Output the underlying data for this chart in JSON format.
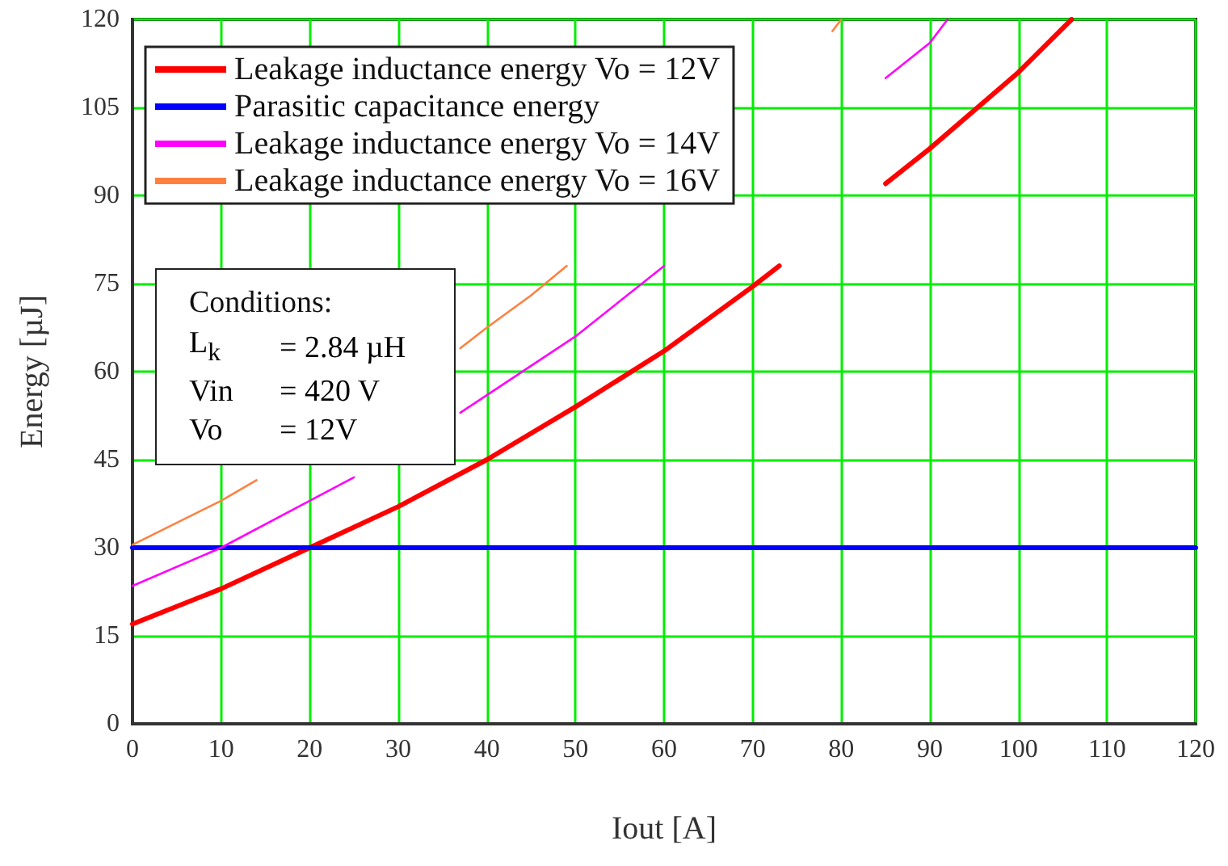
{
  "chart_data": {
    "type": "line",
    "xlabel": "Iout [A]",
    "ylabel": "Energy [µJ]",
    "xlim": [
      0,
      120
    ],
    "xticks": [
      0,
      10,
      20,
      30,
      40,
      50,
      60,
      70,
      80,
      90,
      100,
      110,
      120
    ],
    "ylim": [
      0,
      120
    ],
    "yticks": [
      0,
      15,
      30,
      45,
      60,
      75,
      90,
      105,
      120
    ],
    "grid": true,
    "legend": "top left",
    "marker": "none",
    "line_style": "solid",
    "annotations": [
      "Conditions:\nL$_{k}$\t= 2.84 µH\nVin\t= 420 V\nVo\t= 12V"
    ],
    "series": [
      {
        "name": "Leakage inductance energy Vo = 12V",
        "color": "#ff0000",
        "x": [
          0,
          10,
          20,
          30,
          40,
          50,
          60,
          70,
          73,
          80,
          85,
          90,
          100,
          106
        ],
        "values": [
          17,
          23,
          30,
          37,
          45,
          54,
          63.5,
          74.5,
          78,
          null,
          92,
          98,
          111,
          120
        ]
      },
      {
        "name": "Parasitic capacitance energy",
        "color": "#0000ff",
        "x": [
          0,
          120
        ],
        "values": [
          30,
          30
        ]
      },
      {
        "name": "Leakage inductance energy Vo = 14V",
        "color": "#ff00ff",
        "x": [
          0,
          10,
          20,
          25,
          30,
          37,
          40,
          50,
          60,
          70,
          85,
          90,
          92
        ],
        "values": [
          23.5,
          30,
          38,
          42,
          null,
          53,
          56,
          66,
          78,
          null,
          110,
          116,
          120
        ]
      },
      {
        "name": "Leakage inductance energy Vo = 16V",
        "color": "#ff8040",
        "x": [
          0,
          10,
          14,
          20,
          37,
          40,
          45,
          49,
          60,
          79,
          80
        ],
        "values": [
          30.5,
          38,
          41.5,
          null,
          64,
          67.5,
          73,
          78,
          null,
          118,
          120
        ]
      }
    ]
  }
}
